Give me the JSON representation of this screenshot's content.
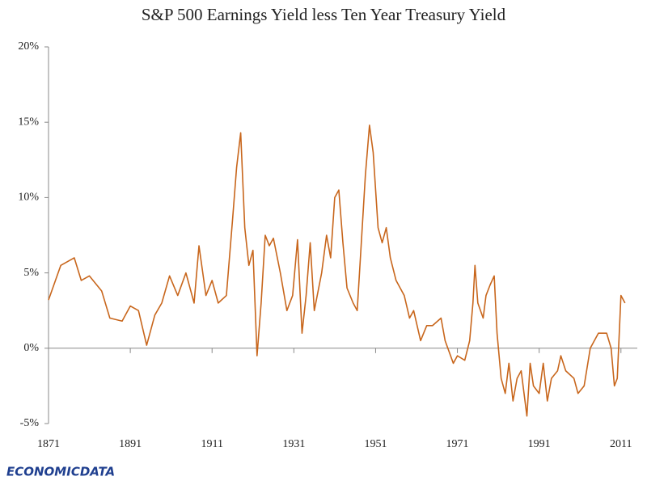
{
  "chart_data": {
    "type": "line",
    "title": "S&P 500 Earnings Yield less Ten Year Treasury Yield",
    "footer": "ECONOMICDATA",
    "xlim": [
      1871,
      2015
    ],
    "xticks": [
      1871,
      1891,
      1911,
      1931,
      1951,
      1971,
      1991,
      2011
    ],
    "ylim": [
      -5,
      20
    ],
    "yticks": [
      {
        "value": -5,
        "label": "-5%"
      },
      {
        "value": 0,
        "label": "0%"
      },
      {
        "value": 5,
        "label": "5%"
      },
      {
        "value": 10,
        "label": "10%"
      },
      {
        "value": 15,
        "label": "15%"
      },
      {
        "value": 20,
        "label": "20%"
      }
    ],
    "series": [
      {
        "name": "Earnings Yield less Treasury Yield",
        "color": "#c8661c",
        "x": [
          1871,
          1874,
          1877.3,
          1879,
          1881,
          1884,
          1886,
          1889,
          1891,
          1893,
          1895,
          1897,
          1898.7,
          1900.6,
          1902.6,
          1904.6,
          1906.6,
          1907.8,
          1909.5,
          1911,
          1912.5,
          1914.5,
          1916,
          1917,
          1918,
          1919,
          1920,
          1921,
          1922,
          1923,
          1924,
          1925,
          1926,
          1927.7,
          1929.3,
          1930.7,
          1931.9,
          1933,
          1934,
          1935,
          1936,
          1937.8,
          1939,
          1940,
          1941,
          1942,
          1943,
          1944,
          1945.5,
          1946.5,
          1947.5,
          1948.5,
          1949.5,
          1950.4,
          1951.6,
          1952.6,
          1953.6,
          1954.6,
          1956,
          1957,
          1958,
          1959.3,
          1960.3,
          1962,
          1963.5,
          1964.9,
          1967,
          1968,
          1970,
          1971,
          1972.8,
          1974,
          1974.8,
          1975.3,
          1976,
          1977.3,
          1978,
          1979,
          1980,
          1980.7,
          1981.7,
          1982.7,
          1983.6,
          1984.6,
          1985.6,
          1986.6,
          1988,
          1988.8,
          1989.6,
          1991,
          1992,
          1993,
          1994,
          1995.5,
          1996.3,
          1997.5,
          1999.5,
          2000.5,
          2002,
          2003.5,
          2005.5,
          2007.5,
          2008.6,
          2009.4,
          2010.1,
          2011,
          2011.6,
          2012
        ],
        "values": [
          3.2,
          5.5,
          6.0,
          4.5,
          4.8,
          3.8,
          2.0,
          1.8,
          2.8,
          2.5,
          0.2,
          2.2,
          3.0,
          4.8,
          3.5,
          5.0,
          3.0,
          6.8,
          3.5,
          4.5,
          3.0,
          3.5,
          8.5,
          12.0,
          14.3,
          8.0,
          5.5,
          6.5,
          -0.5,
          3.0,
          7.5,
          6.8,
          7.3,
          5.0,
          2.5,
          3.5,
          7.2,
          1.0,
          3.5,
          7.0,
          2.5,
          5.0,
          7.5,
          6.0,
          10.0,
          10.5,
          7.0,
          4.0,
          3.0,
          2.5,
          7.0,
          11.5,
          14.8,
          13.0,
          8.0,
          7.0,
          8.0,
          6.0,
          4.5,
          4.0,
          3.5,
          2.0,
          2.5,
          0.5,
          1.5,
          1.5,
          2.0,
          0.5,
          -1.0,
          -0.5,
          -0.8,
          0.5,
          3.0,
          5.5,
          3.0,
          2.0,
          3.5,
          4.2,
          4.8,
          1.0,
          -2.0,
          -3.0,
          -1.0,
          -3.5,
          -2.0,
          -1.5,
          -4.5,
          -1.0,
          -2.5,
          -3.0,
          -1.0,
          -3.5,
          -2.0,
          -1.5,
          -0.5,
          -1.5,
          -2.0,
          -3.0,
          -2.5,
          0.0,
          1.0,
          1.0,
          0.0,
          -2.5,
          -2.0,
          3.5,
          3.2,
          3.0
        ]
      }
    ]
  }
}
